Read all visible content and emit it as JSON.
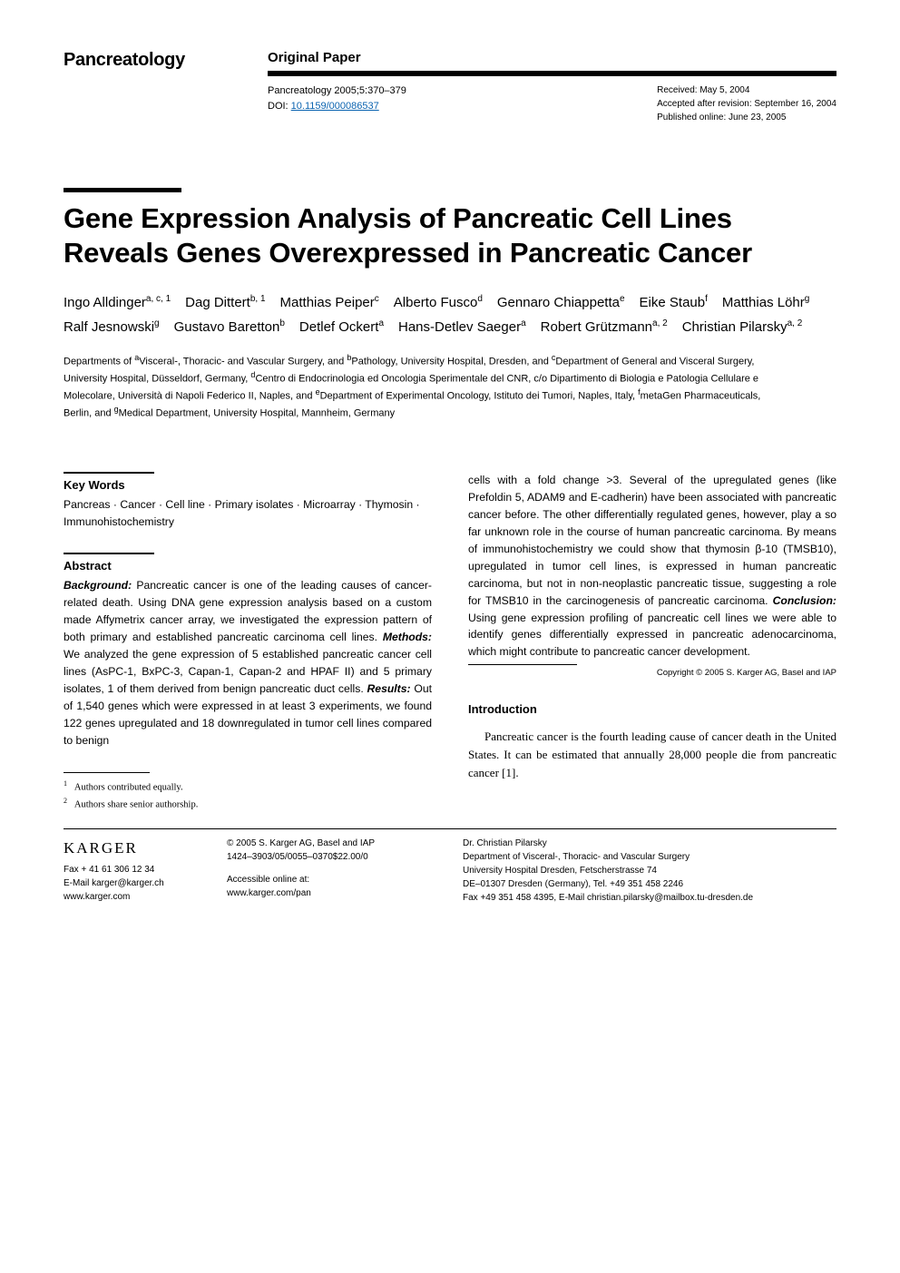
{
  "journal": "Pancreatology",
  "section_label": "Original Paper",
  "citation": "Pancreatology 2005;5:370–379",
  "doi_label": "DOI: ",
  "doi": "10.1159/000086537",
  "received": "Received: May 5, 2004",
  "accepted": "Accepted after revision: September 16, 2004",
  "published": "Published online: June 23, 2005",
  "title": "Gene Expression Analysis of Pancreatic Cell Lines Reveals Genes Overexpressed in Pancreatic Cancer",
  "authors": [
    {
      "name": "Ingo Alldinger",
      "aff": "a, c, 1"
    },
    {
      "name": "Dag Dittert",
      "aff": "b, 1"
    },
    {
      "name": "Matthias Peiper",
      "aff": "c"
    },
    {
      "name": "Alberto Fusco",
      "aff": "d"
    },
    {
      "name": "Gennaro Chiappetta",
      "aff": "e"
    },
    {
      "name": "Eike Staub",
      "aff": "f"
    },
    {
      "name": "Matthias Löhr",
      "aff": "g"
    },
    {
      "name": "Ralf Jesnowski",
      "aff": "g"
    },
    {
      "name": "Gustavo Baretton",
      "aff": "b"
    },
    {
      "name": "Detlef Ockert",
      "aff": "a"
    },
    {
      "name": "Hans-Detlev Saeger",
      "aff": "a"
    },
    {
      "name": "Robert Grützmann",
      "aff": "a, 2"
    },
    {
      "name": "Christian Pilarsky",
      "aff": "a, 2"
    }
  ],
  "affiliations_html": "Departments of <sup>a</sup>Visceral-, Thoracic- and Vascular Surgery, and <sup>b</sup>Pathology, University Hospital, Dresden, and <sup>c</sup>Department of General and Visceral Surgery, University Hospital, Düsseldorf, Germany, <sup>d</sup>Centro di Endocrinologia ed Oncologia Sperimentale del CNR, c/o Dipartimento di Biologia e Patologia Cellulare e Molecolare, Università di Napoli Federico II, Naples, and <sup>e</sup>Department of Experimental Oncology, Istituto dei Tumori, Naples, Italy, <sup>f</sup>metaGen Pharmaceuticals, Berlin, and <sup>g</sup>Medical Department, University Hospital, Mannheim, Germany",
  "keywords_head": "Key Words",
  "keywords": "Pancreas · Cancer · Cell line · Primary isolates · Microarray · Thymosin · Immunohistochemistry",
  "abstract_head": "Abstract",
  "abstract_left_html": "<b><i>Background:</i></b> Pancreatic cancer is one of the leading causes of cancer-related death. Using DNA gene expression analysis based on a custom made Affymetrix cancer array, we investigated the expression pattern of both primary and established pancreatic carcinoma cell lines. <b><i>Methods:</i></b> We analyzed the gene expression of 5 established pancreatic cancer cell lines (AsPC-1, BxPC-3, Capan-1, Capan-2 and HPAF II) and 5 primary isolates, 1 of them derived from benign pancreatic duct cells. <b><i>Results:</i></b> Out of 1,540 genes which were expressed in at least 3 experiments, we found 122 genes upregulated and 18 downregulated in tumor cell lines compared to benign",
  "abstract_right_html": "cells with a fold change >3. Several of the upregulated genes (like Prefoldin 5, ADAM9 and E-cadherin) have been associated with pancreatic cancer before. The other differentially regulated genes, however, play a so far unknown role in the course of human pancreatic carcinoma. By means of immunohistochemistry we could show that thymosin β-10 (TMSB10), upregulated in tumor cell lines, is expressed in human pancreatic carcinoma, but not in non-neoplastic pancreatic tissue, suggesting a role for TMSB10 in the carcinogenesis of pancreatic carcinoma. <b><i>Conclusion:</i></b> Using gene expression profiling of pancreatic cell lines we were able to identify genes differentially expressed in pancreatic adenocarcinoma, which might contribute to pancreatic cancer development.",
  "copyright": "Copyright © 2005 S. Karger AG, Basel and IAP",
  "intro_head": "Introduction",
  "intro_body": "Pancreatic cancer is the fourth leading cause of cancer death in the United States. It can be estimated that annually 28,000 people die from pancreatic cancer [1].",
  "footnote1": "Authors contributed equally.",
  "footnote2": "Authors share senior authorship.",
  "karger": "KARGER",
  "fax": "Fax + 41 61 306 12 34",
  "email": "E-Mail karger@karger.ch",
  "web": "www.karger.com",
  "copyright_block": "© 2005 S. Karger AG, Basel and IAP",
  "issn": "1424–3903/05/0055–0370$22.00/0",
  "accessible": "Accessible online at:",
  "accessible_url": "www.karger.com/pan",
  "corr_name": "Dr. Christian Pilarsky",
  "corr_dept": "Department of Visceral-, Thoracic- and Vascular Surgery",
  "corr_hosp": "University Hospital Dresden, Fetscherstrasse 74",
  "corr_city": "DE–01307 Dresden (Germany), Tel. +49 351 458 2246",
  "corr_fax": "Fax +49 351 458 4395, E-Mail christian.pilarsky@mailbox.tu-dresden.de"
}
